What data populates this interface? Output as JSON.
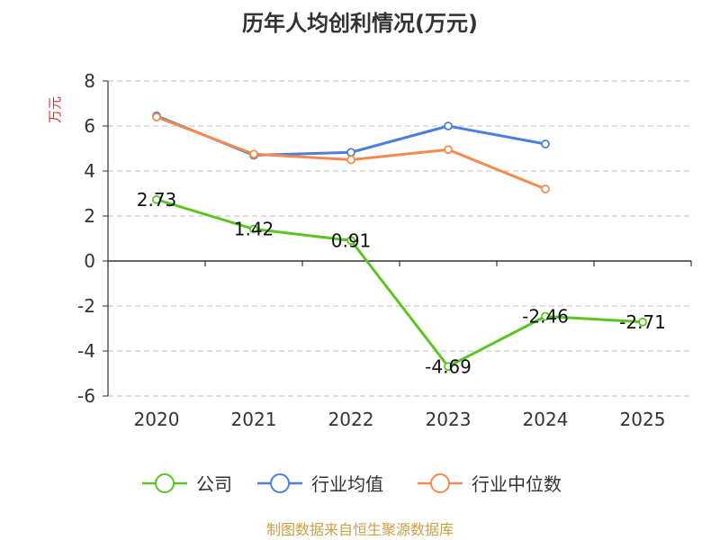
{
  "chart_data": {
    "type": "line",
    "title": "历年人均创利情况(万元)",
    "ylabel": "万元",
    "xlabel": "",
    "categories": [
      "2020",
      "2021",
      "2022",
      "2023",
      "2024",
      "2025"
    ],
    "ylim": [
      -6,
      8
    ],
    "yticks": [
      -6,
      -4,
      -2,
      0,
      2,
      4,
      6,
      8
    ],
    "grid": true,
    "legend_position": "bottom",
    "series": [
      {
        "name": "公司",
        "color": "#5bc423",
        "values": [
          2.73,
          1.42,
          0.91,
          -4.69,
          -2.46,
          -2.71
        ],
        "labels": [
          "2.73",
          "1.42",
          "0.91",
          "-4.69",
          "-2.46",
          "-2.71"
        ]
      },
      {
        "name": "行业均值",
        "color": "#4a7fdc",
        "values": [
          6.45,
          4.7,
          4.83,
          6.0,
          5.2,
          null
        ]
      },
      {
        "name": "行业中位数",
        "color": "#f5894e",
        "values": [
          6.4,
          4.75,
          4.5,
          4.95,
          3.2,
          null
        ]
      }
    ]
  },
  "footer": {
    "source": "制图数据来自恒生聚源数据库"
  }
}
